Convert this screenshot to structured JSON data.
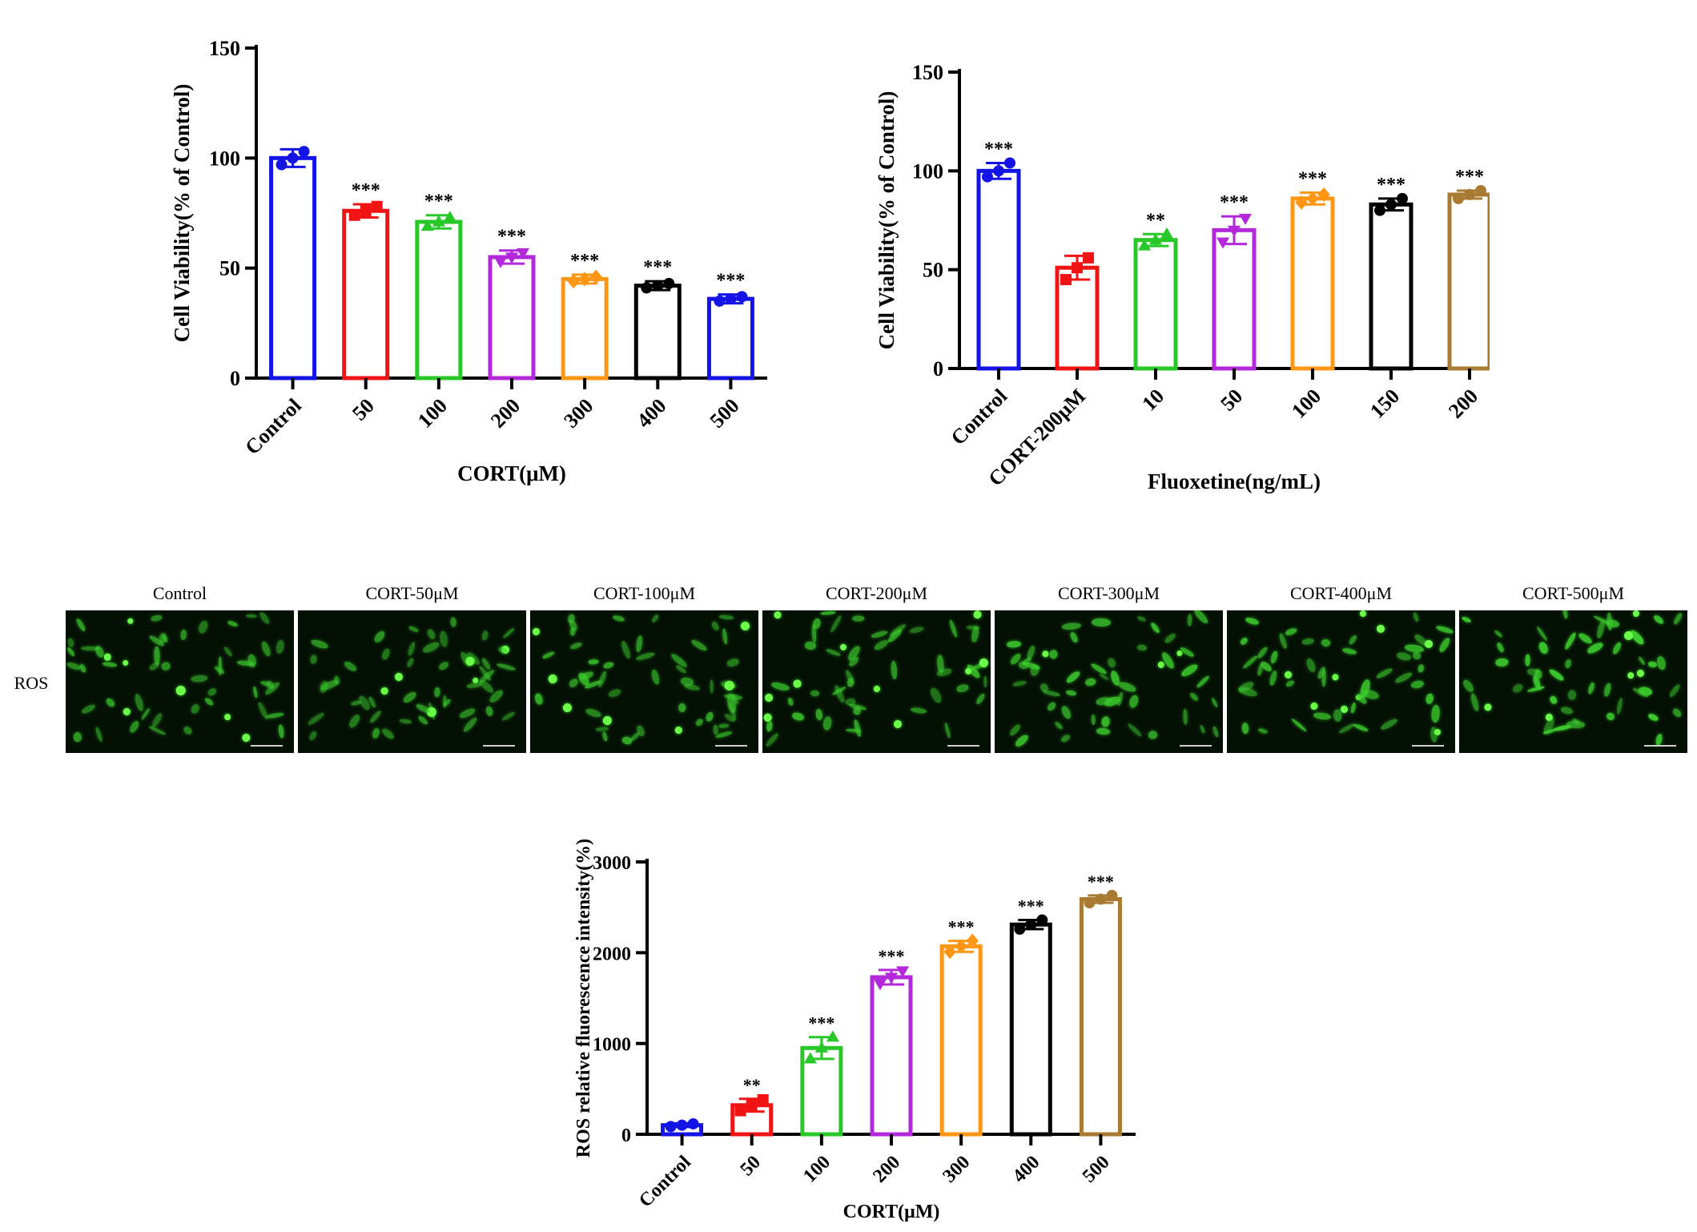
{
  "colors": {
    "blue": "#1414e6",
    "red": "#f01414",
    "green": "#28c828",
    "purple": "#b428dc",
    "orange": "#ff9614",
    "black": "#000000",
    "brown": "#a87a32",
    "cell_green": "#3ccc2e",
    "cell_bright": "#6cff4a",
    "micro_bg": "#041004"
  },
  "chart_data": [
    {
      "type": "bar",
      "ylabel": "Cell Viability(% of Control)",
      "xlabel": "CORT(μM)",
      "ylim": [
        0,
        150
      ],
      "yticks": [
        0,
        50,
        100,
        150
      ],
      "categories": [
        "Control",
        "50",
        "100",
        "200",
        "300",
        "400",
        "500"
      ],
      "values": [
        100,
        76,
        71,
        55,
        45,
        42,
        36
      ],
      "errors": [
        4,
        3,
        3,
        3,
        2,
        2,
        2
      ],
      "points": [
        [
          97,
          100,
          103
        ],
        [
          74,
          76,
          78
        ],
        [
          69,
          71,
          73
        ],
        [
          53,
          55,
          57
        ],
        [
          44,
          45,
          46
        ],
        [
          41,
          42,
          43
        ],
        [
          35,
          36,
          37
        ]
      ],
      "significance": [
        "",
        "***",
        "***",
        "***",
        "***",
        "***",
        "***"
      ],
      "bar_colors": [
        "#1414e6",
        "#f01414",
        "#28c828",
        "#b428dc",
        "#ff9614",
        "#000000",
        "#1414e6"
      ],
      "grid": false
    },
    {
      "type": "bar",
      "ylabel": "Cell Viability(% of Control)",
      "xlabel": "Fluoxetine(ng/mL)",
      "ylim": [
        0,
        150
      ],
      "yticks": [
        0,
        50,
        100,
        150
      ],
      "categories": [
        "Control",
        "CORT-200μM",
        "10",
        "50",
        "100",
        "150",
        "200"
      ],
      "values": [
        100,
        51,
        65,
        70,
        86,
        83,
        88
      ],
      "errors": [
        4,
        6,
        3,
        7,
        3,
        3,
        2
      ],
      "points": [
        [
          97,
          100,
          104
        ],
        [
          45,
          51,
          56
        ],
        [
          62,
          65,
          68
        ],
        [
          64,
          70,
          76
        ],
        [
          84,
          86,
          88
        ],
        [
          80,
          83,
          86
        ],
        [
          86,
          88,
          90
        ]
      ],
      "significance": [
        "***",
        "",
        "**",
        "***",
        "***",
        "***",
        "***"
      ],
      "bar_colors": [
        "#1414e6",
        "#f01414",
        "#28c828",
        "#b428dc",
        "#ff9614",
        "#000000",
        "#a87a32"
      ],
      "grid": false
    },
    {
      "type": "bar",
      "ylabel": "ROS relative fluorescence intensity(%)",
      "xlabel": "CORT(μM)",
      "ylim": [
        0,
        3000
      ],
      "yticks": [
        0,
        1000,
        2000,
        3000
      ],
      "categories": [
        "Control",
        "50",
        "100",
        "200",
        "300",
        "400",
        "500"
      ],
      "values": [
        100,
        320,
        950,
        1730,
        2070,
        2310,
        2590
      ],
      "errors": [
        20,
        70,
        120,
        80,
        60,
        50,
        40
      ],
      "points": [
        [
          85,
          100,
          115
        ],
        [
          260,
          320,
          380
        ],
        [
          830,
          950,
          1070
        ],
        [
          1660,
          1730,
          1800
        ],
        [
          2010,
          2070,
          2130
        ],
        [
          2260,
          2310,
          2360
        ],
        [
          2550,
          2590,
          2630
        ]
      ],
      "significance": [
        "",
        "**",
        "***",
        "***",
        "***",
        "***",
        "***"
      ],
      "bar_colors": [
        "#1414e6",
        "#f01414",
        "#28c828",
        "#b428dc",
        "#ff9614",
        "#000000",
        "#a87a32"
      ],
      "grid": false
    }
  ],
  "microscopy": {
    "row_label": "ROS",
    "panels": [
      {
        "label": "Control",
        "brightness": 0.55
      },
      {
        "label": "CORT-50μM",
        "brightness": 0.45
      },
      {
        "label": "CORT-100μM",
        "brightness": 0.65
      },
      {
        "label": "CORT-200μM",
        "brightness": 0.75
      },
      {
        "label": "CORT-300μM",
        "brightness": 0.8
      },
      {
        "label": "CORT-400μM",
        "brightness": 0.9
      },
      {
        "label": "CORT-500μM",
        "brightness": 1.0
      }
    ]
  }
}
